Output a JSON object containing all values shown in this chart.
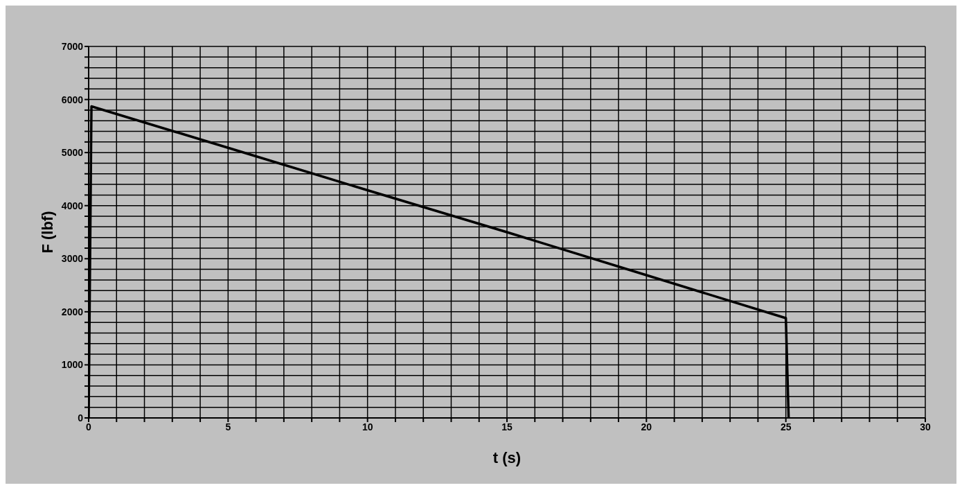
{
  "chart_data": {
    "type": "line",
    "xlabel": "t (s)",
    "ylabel": "F (lbf)",
    "x": [
      0,
      0.1,
      5,
      10,
      15,
      20,
      25,
      25.1
    ],
    "series": [
      {
        "color": "#000000",
        "values": [
          0,
          5870,
          5090,
          4290,
          3500,
          2690,
          1880,
          0
        ]
      }
    ],
    "xlim": [
      0,
      30
    ],
    "ylim": [
      0,
      7000
    ],
    "xticks": [
      0,
      {
        "value": 1,
        "label": null
      },
      {
        "value": 2,
        "label": null
      },
      {
        "value": 3,
        "label": null
      },
      {
        "value": 4,
        "label": null
      },
      5,
      {
        "value": 6,
        "label": null
      },
      {
        "value": 7,
        "label": null
      },
      {
        "value": 8,
        "label": null
      },
      {
        "value": 9,
        "label": null
      },
      10,
      {
        "value": 11,
        "label": null
      },
      {
        "value": 12,
        "label": null
      },
      {
        "value": 13,
        "label": null
      },
      {
        "value": 14,
        "label": null
      },
      15,
      {
        "value": 16,
        "label": null
      },
      {
        "value": 17,
        "label": null
      },
      {
        "value": 18,
        "label": null
      },
      {
        "value": 19,
        "label": null
      },
      20,
      {
        "value": 21,
        "label": null
      },
      {
        "value": 22,
        "label": null
      },
      {
        "value": 23,
        "label": null
      },
      {
        "value": 24,
        "label": null
      },
      25,
      {
        "value": 26,
        "label": null
      },
      {
        "value": 27,
        "label": null
      },
      {
        "value": 28,
        "label": null
      },
      {
        "value": 29,
        "label": null
      },
      30
    ],
    "yticks": [
      0,
      {
        "value": 200,
        "label": null
      },
      {
        "value": 400,
        "label": null
      },
      {
        "value": 600,
        "label": null
      },
      {
        "value": 800,
        "label": null
      },
      1000,
      {
        "value": 1200,
        "label": null
      },
      {
        "value": 1400,
        "label": null
      },
      {
        "value": 1600,
        "label": null
      },
      {
        "value": 1800,
        "label": null
      },
      2000,
      {
        "value": 2200,
        "label": null
      },
      {
        "value": 2400,
        "label": null
      },
      {
        "value": 2600,
        "label": null
      },
      {
        "value": 2800,
        "label": null
      },
      3000,
      {
        "value": 3200,
        "label": null
      },
      {
        "value": 3400,
        "label": null
      },
      {
        "value": 3600,
        "label": null
      },
      {
        "value": 3800,
        "label": null
      },
      4000,
      {
        "value": 4200,
        "label": null
      },
      {
        "value": 4400,
        "label": null
      },
      {
        "value": 4600,
        "label": null
      },
      {
        "value": 4800,
        "label": null
      },
      5000,
      {
        "value": 5200,
        "label": null
      },
      {
        "value": 5400,
        "label": null
      },
      {
        "value": 5600,
        "label": null
      },
      {
        "value": 5800,
        "label": null
      },
      6000,
      {
        "value": 6200,
        "label": null
      },
      {
        "value": 6400,
        "label": null
      },
      {
        "value": 6600,
        "label": null
      },
      {
        "value": 6800,
        "label": null
      },
      7000
    ],
    "grid": true,
    "marker": "none",
    "line_style": "solid"
  }
}
